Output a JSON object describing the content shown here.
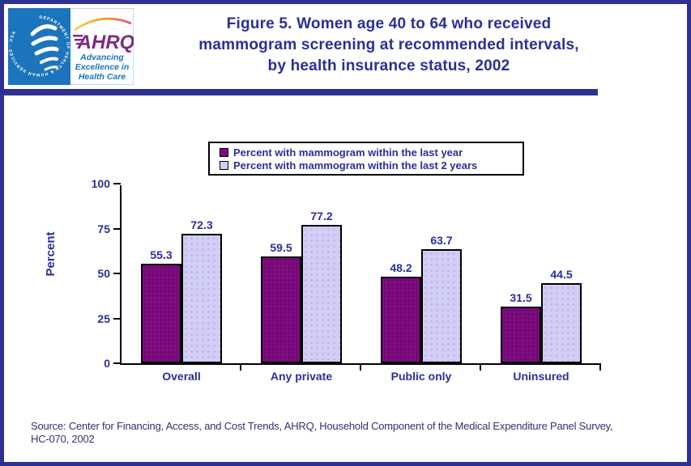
{
  "page": {
    "border_color": "#2E3192",
    "background_color": "#FFFFFF",
    "navy_text_color": "#2B2E9C"
  },
  "header": {
    "logo": {
      "seal_text": "DEPARTMENT OF HEALTH & HUMAN SERVICES · USA",
      "ahrq_acronym": "AHRQ",
      "tagline_lines": [
        "Advancing",
        "Excellence in",
        "Health Care"
      ]
    },
    "title_lines": [
      "Figure 5. Women age 40 to 64 who received",
      "mammogram screening at recommended intervals,",
      "by health insurance status, 2002"
    ]
  },
  "chart_data": {
    "type": "bar",
    "title": "Figure 5. Women age 40 to 64 who received mammogram screening at recommended intervals, by health insurance status, 2002",
    "categories": [
      "Overall",
      "Any private",
      "Public only",
      "Uninsured"
    ],
    "series": [
      {
        "name": "Percent with mammogram within the last year",
        "color": "#7E0C80",
        "values": [
          55.3,
          59.5,
          48.2,
          31.5
        ]
      },
      {
        "name": "Percent with mammogram within the last 2 years",
        "color": "#CFCFF5",
        "values": [
          72.3,
          77.2,
          63.7,
          44.5
        ]
      }
    ],
    "xlabel": "",
    "ylabel": "Percent",
    "ylim": [
      0,
      100
    ],
    "yticks": [
      0,
      25,
      50,
      75,
      100
    ],
    "grid": false,
    "legend_position": "top",
    "value_labels": true
  },
  "source": {
    "lines": [
      "Source: Center for Financing, Access, and Cost Trends, AHRQ, Household Component of the Medical Expenditure Panel Survey,",
      "HC-070, 2002"
    ]
  }
}
